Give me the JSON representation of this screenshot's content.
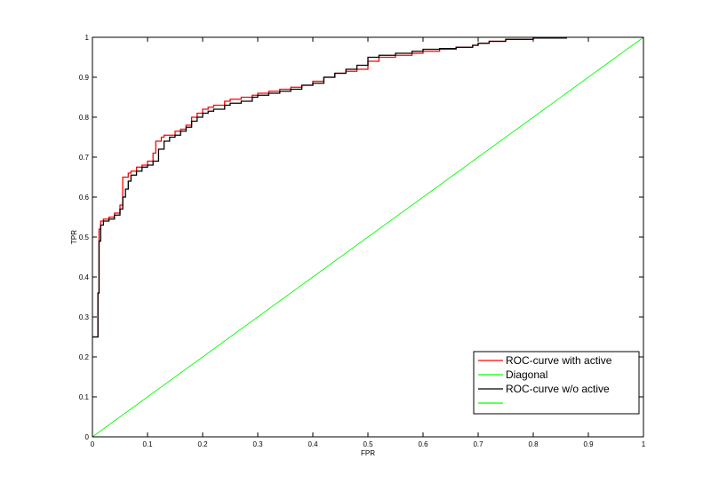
{
  "chart_data": {
    "type": "line",
    "title": "",
    "xlabel": "FPR",
    "ylabel": "TPR",
    "xlim": [
      0,
      1
    ],
    "ylim": [
      0,
      1
    ],
    "xticks": [
      "0",
      "0.1",
      "0.2",
      "0.3",
      "0.4",
      "0.5",
      "0.6",
      "0.7",
      "0.8",
      "0.9",
      "1"
    ],
    "yticks": [
      "0",
      "0.1",
      "0.2",
      "0.3",
      "0.4",
      "0.5",
      "0.6",
      "0.7",
      "0.8",
      "0.9",
      "1"
    ],
    "grid": false,
    "legend_position": "bottom-right",
    "legend": [
      "ROC-curve with active",
      "Diagonal",
      "ROC-curve w/o active",
      ""
    ],
    "series": [
      {
        "name": "ROC-curve with active",
        "color": "#ff0000",
        "x": [
          0,
          0.01,
          0.01,
          0.012,
          0.012,
          0.015,
          0.015,
          0.02,
          0.03,
          0.04,
          0.05,
          0.055,
          0.055,
          0.065,
          0.07,
          0.08,
          0.09,
          0.1,
          0.11,
          0.115,
          0.125,
          0.13,
          0.15,
          0.16,
          0.17,
          0.18,
          0.19,
          0.2,
          0.21,
          0.22,
          0.24,
          0.25,
          0.27,
          0.29,
          0.3,
          0.32,
          0.34,
          0.36,
          0.38,
          0.4,
          0.42,
          0.44,
          0.46,
          0.48,
          0.5,
          0.52,
          0.55,
          0.58,
          0.6,
          0.63,
          0.66,
          0.69,
          0.7,
          0.72,
          0.75,
          0.8,
          0.86
        ],
        "y": [
          0.25,
          0.25,
          0.36,
          0.36,
          0.52,
          0.52,
          0.54,
          0.545,
          0.55,
          0.56,
          0.58,
          0.63,
          0.65,
          0.66,
          0.665,
          0.675,
          0.68,
          0.69,
          0.71,
          0.74,
          0.75,
          0.755,
          0.765,
          0.77,
          0.78,
          0.8,
          0.81,
          0.82,
          0.825,
          0.83,
          0.84,
          0.845,
          0.85,
          0.855,
          0.86,
          0.865,
          0.87,
          0.875,
          0.88,
          0.89,
          0.9,
          0.91,
          0.915,
          0.92,
          0.94,
          0.95,
          0.955,
          0.96,
          0.965,
          0.97,
          0.975,
          0.98,
          0.985,
          0.99,
          0.995,
          0.998,
          1.0
        ]
      },
      {
        "name": "Diagonal",
        "color": "#00ff00",
        "x": [
          0,
          1
        ],
        "y": [
          0,
          1
        ]
      },
      {
        "name": "ROC-curve w/o active",
        "color": "#000000",
        "x": [
          0,
          0.01,
          0.01,
          0.012,
          0.012,
          0.015,
          0.015,
          0.02,
          0.03,
          0.04,
          0.05,
          0.055,
          0.06,
          0.065,
          0.07,
          0.08,
          0.09,
          0.1,
          0.11,
          0.12,
          0.13,
          0.14,
          0.15,
          0.16,
          0.17,
          0.18,
          0.19,
          0.2,
          0.21,
          0.22,
          0.24,
          0.25,
          0.27,
          0.29,
          0.3,
          0.32,
          0.34,
          0.36,
          0.38,
          0.4,
          0.42,
          0.44,
          0.46,
          0.48,
          0.5,
          0.52,
          0.55,
          0.58,
          0.6,
          0.63,
          0.66,
          0.69,
          0.7,
          0.72,
          0.75,
          0.8,
          0.86
        ],
        "y": [
          0.25,
          0.25,
          0.36,
          0.36,
          0.49,
          0.49,
          0.53,
          0.54,
          0.545,
          0.555,
          0.57,
          0.6,
          0.62,
          0.64,
          0.655,
          0.665,
          0.675,
          0.68,
          0.69,
          0.72,
          0.74,
          0.75,
          0.755,
          0.765,
          0.775,
          0.79,
          0.8,
          0.81,
          0.815,
          0.82,
          0.83,
          0.835,
          0.84,
          0.85,
          0.855,
          0.86,
          0.865,
          0.87,
          0.88,
          0.885,
          0.9,
          0.91,
          0.92,
          0.93,
          0.95,
          0.955,
          0.96,
          0.965,
          0.97,
          0.972,
          0.975,
          0.98,
          0.985,
          0.99,
          0.995,
          0.998,
          1.0
        ]
      }
    ]
  }
}
